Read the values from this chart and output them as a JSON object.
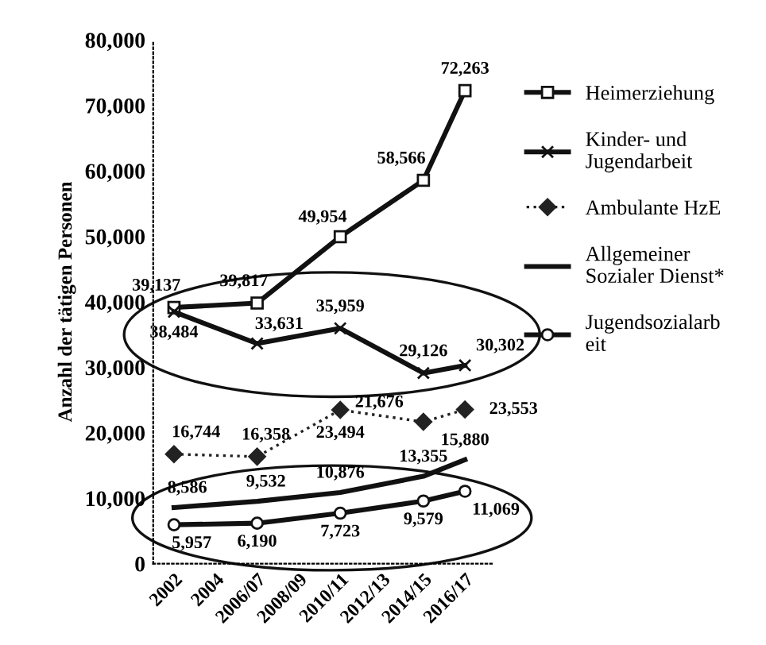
{
  "chart_data": {
    "type": "line",
    "ylabel": "Anzahl der tätigen Personen",
    "categories": [
      "2002",
      "2004",
      "2006/07",
      "2008/09",
      "2010/11",
      "2012/13",
      "2014/15",
      "2016/17"
    ],
    "series": [
      {
        "name": "Heimerziehung",
        "color": "#111111",
        "marker": "square",
        "line_style": "solid",
        "values": [
          39137,
          null,
          39817,
          null,
          49954,
          null,
          58566,
          72263
        ],
        "value_labels": [
          "39,137",
          null,
          "39,817",
          null,
          "49,954",
          null,
          "58,566",
          "72,263"
        ]
      },
      {
        "name": "Kinder- und\nJugendarbeit",
        "color": "#111111",
        "marker": "cross",
        "line_style": "solid",
        "values": [
          38484,
          null,
          33631,
          null,
          35959,
          null,
          29126,
          30302
        ],
        "value_labels": [
          "38,484",
          null,
          "33,631",
          null,
          "35,959",
          null,
          "29,126",
          "30,302"
        ]
      },
      {
        "name": "Ambulante HzE",
        "color": "#222222",
        "marker": "diamond",
        "line_style": "dotted",
        "values": [
          16744,
          null,
          16358,
          null,
          23494,
          null,
          21676,
          23553
        ],
        "value_labels": [
          "16,744",
          null,
          "16,358",
          null,
          "23,494",
          null,
          "21,676",
          "23,553"
        ]
      },
      {
        "name": "Allgemeiner\nSozialer Dienst*",
        "color": "#111111",
        "marker": "none",
        "line_style": "solid",
        "values": [
          8586,
          null,
          9532,
          null,
          10876,
          null,
          13355,
          15880
        ],
        "value_labels": [
          "8,586",
          null,
          "9,532",
          null,
          "10,876",
          null,
          "13,355",
          "15,880"
        ]
      },
      {
        "name": "Jugendsozialarb\neit",
        "color": "#111111",
        "marker": "circle",
        "line_style": "solid",
        "values": [
          5957,
          null,
          6190,
          null,
          7723,
          null,
          9579,
          11069
        ],
        "value_labels": [
          "5,957",
          null,
          "6,190",
          null,
          "7,723",
          null,
          "9,579",
          "11,069"
        ]
      }
    ],
    "ylim": [
      0,
      80000
    ],
    "yticks": [
      0,
      {
        "value": 10000,
        "label": "10,000"
      },
      {
        "value": 20000,
        "label": "20,000"
      },
      {
        "value": 30000,
        "label": "30,000"
      },
      {
        "value": 40000,
        "label": "40,000"
      },
      {
        "value": 50000,
        "label": "50,000"
      },
      {
        "value": 60000,
        "label": "60,000"
      },
      {
        "value": 70000,
        "label": "70,000"
      },
      {
        "value": 80000,
        "label": "80,000"
      }
    ],
    "grid": false,
    "legend": "right"
  }
}
